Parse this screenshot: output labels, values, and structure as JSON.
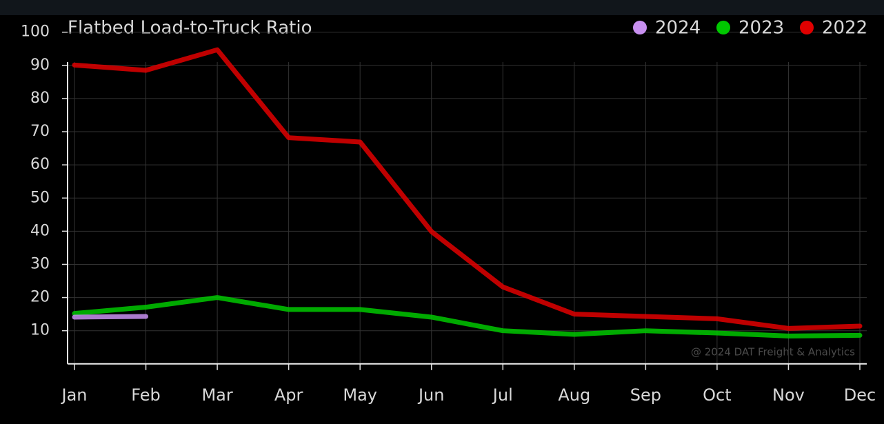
{
  "chart_data": {
    "type": "line",
    "title": "Flatbed Load-to-Truck Ratio",
    "categories": [
      "Jan",
      "Feb",
      "Mar",
      "Apr",
      "May",
      "Jun",
      "Jul",
      "Aug",
      "Sep",
      "Oct",
      "Nov",
      "Dec"
    ],
    "series": [
      {
        "name": "2024",
        "color": "#c890f0",
        "values": [
          14.1,
          14.3,
          null,
          null,
          null,
          null,
          null,
          null,
          null,
          null,
          null,
          null
        ]
      },
      {
        "name": "2023",
        "color": "#00c800",
        "values": [
          15.2,
          17.1,
          20,
          16.4,
          16.4,
          14.1,
          10,
          8.9,
          10,
          9.3,
          8.4,
          8.6
        ]
      },
      {
        "name": "2022",
        "color": "#e00000",
        "values": [
          90.1,
          88.5,
          94.7,
          68.2,
          66.9,
          39.9,
          23.2,
          15,
          14.3,
          13.6,
          10.7,
          11.4
        ]
      }
    ],
    "ylim": [
      0,
      100
    ],
    "yticks": [
      10,
      20,
      30,
      40,
      50,
      60,
      70,
      80,
      90,
      100
    ],
    "grid": true,
    "legend": "top-right",
    "annotation": "@ 2024 DAT Freight & Analytics"
  }
}
